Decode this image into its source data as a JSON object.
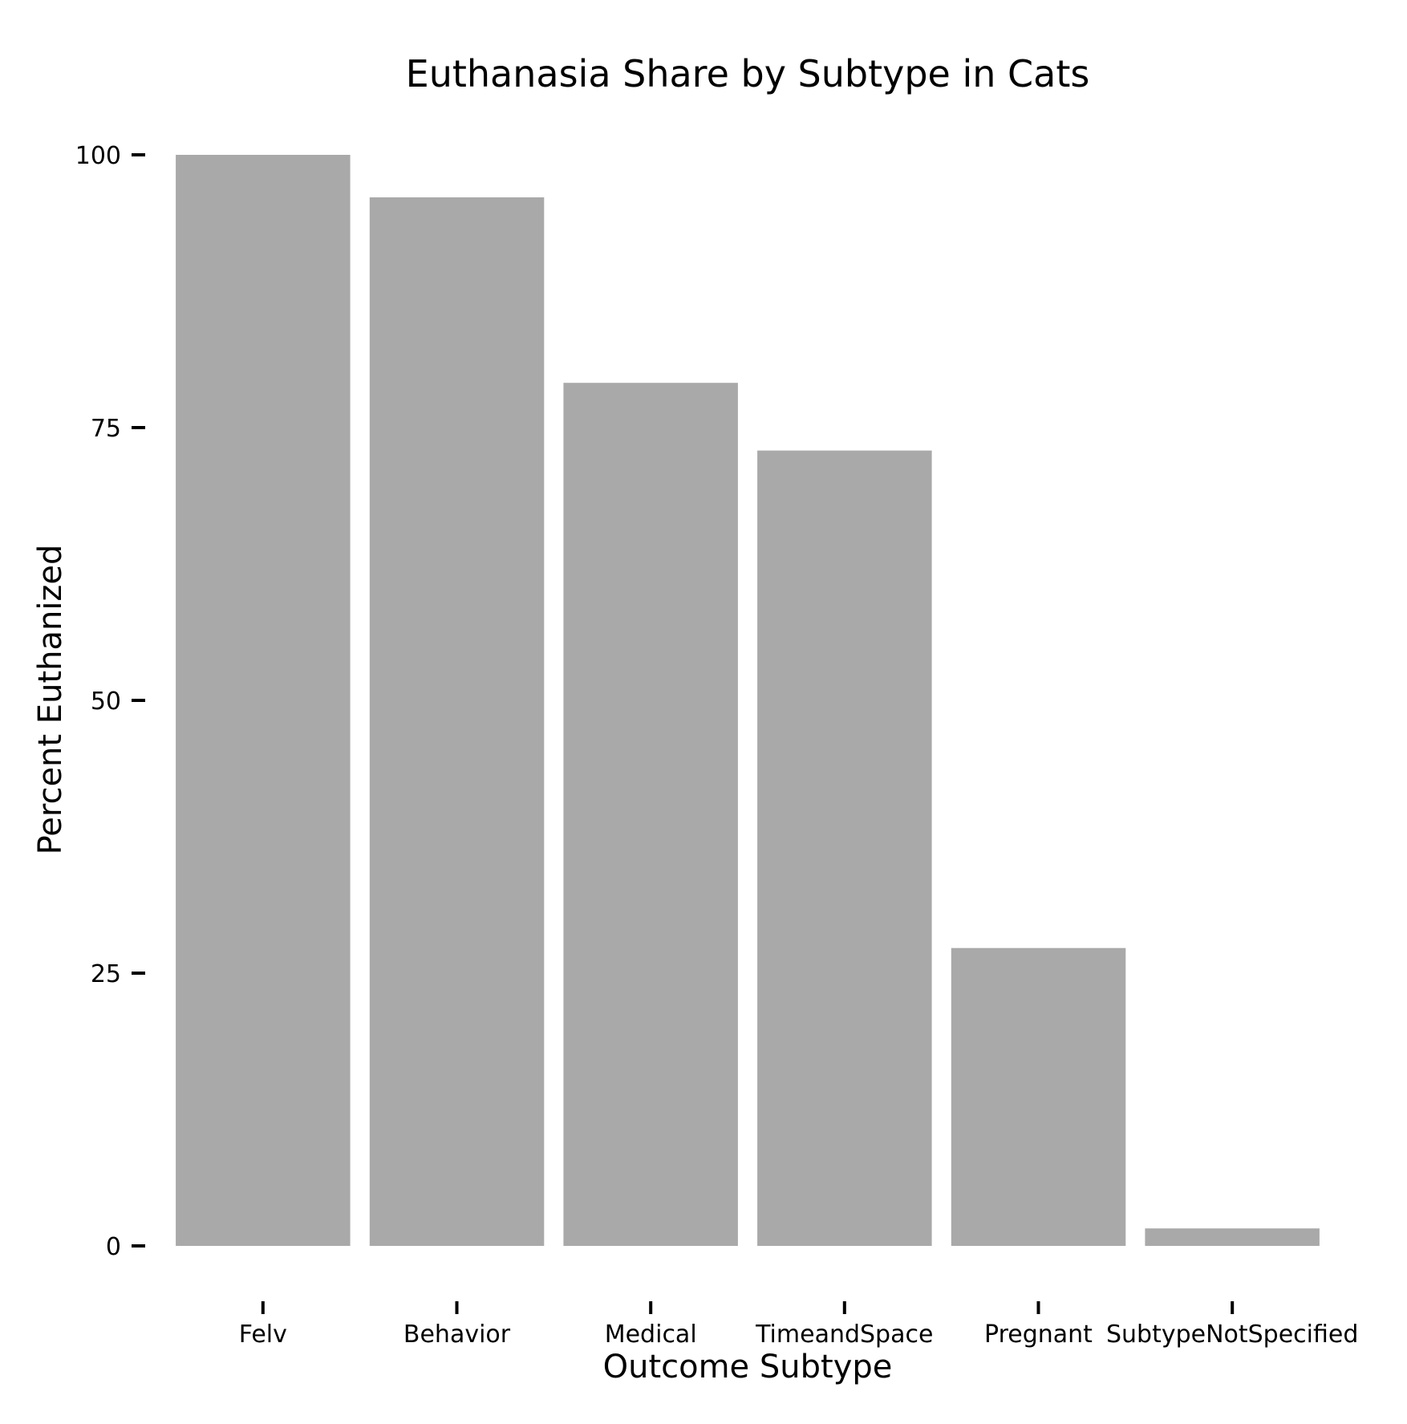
{
  "chart_data": {
    "type": "bar",
    "title": "Euthanasia Share by Subtype in Cats",
    "xlabel": "Outcome Subtype",
    "ylabel": "Percent Euthanized",
    "categories": [
      "Felv",
      "Behavior",
      "Medical",
      "TimeandSpace",
      "Pregnant",
      "SubtypeNotSpecified"
    ],
    "values": [
      100,
      96.1,
      79.1,
      72.9,
      27.3,
      1.6
    ],
    "ylim": [
      0,
      100
    ],
    "yticks": [
      0,
      25,
      50,
      75,
      100
    ],
    "ytick_labels": [
      "0",
      "25",
      "50",
      "75",
      "100"
    ],
    "grid": false,
    "bar_color": "#a9a9a9"
  }
}
